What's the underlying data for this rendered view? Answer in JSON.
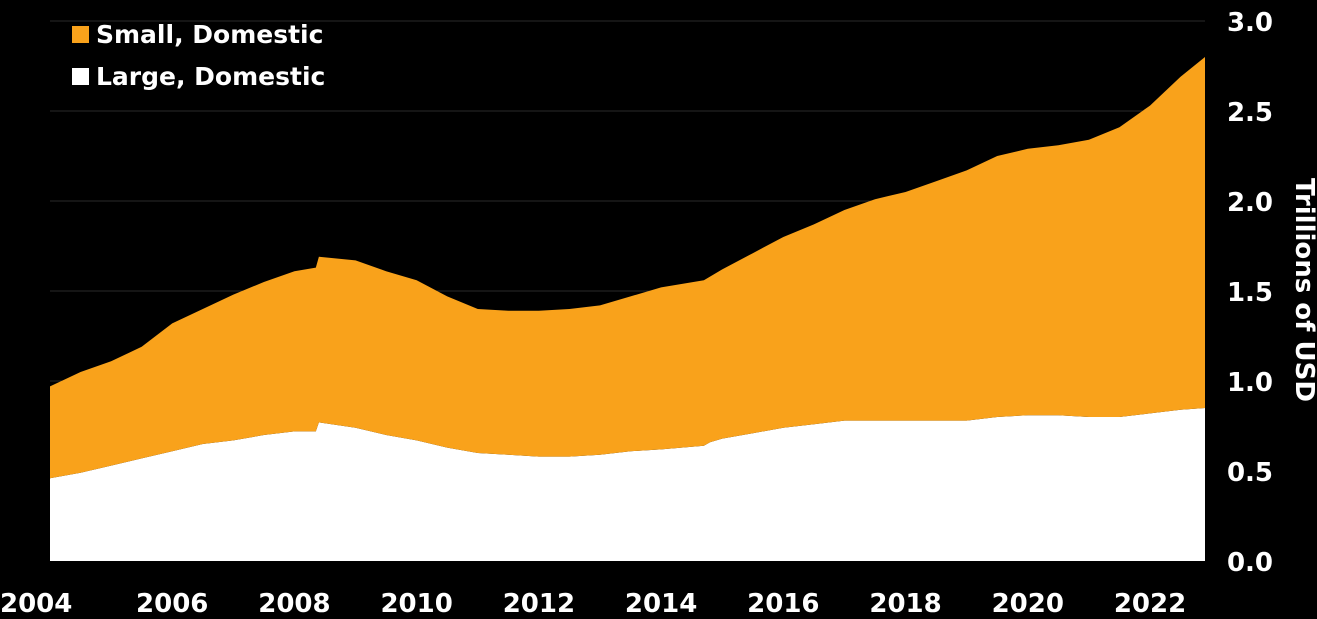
{
  "chart_data": {
    "type": "area",
    "stacked": true,
    "title": "",
    "xlabel": "",
    "ylabel": "Trillions of USD",
    "xlim": [
      2004,
      2022.9
    ],
    "ylim": [
      0,
      3.0
    ],
    "x_ticks": [
      "2004",
      "2006",
      "2008",
      "2010",
      "2012",
      "2014",
      "2016",
      "2018",
      "2020",
      "2022"
    ],
    "y_ticks": [
      "0.0",
      "0.5",
      "1.0",
      "1.5",
      "2.0",
      "2.5",
      "3.0"
    ],
    "grid": true,
    "legend_position": "top-left",
    "x": [
      2004,
      2004.5,
      2005,
      2005.5,
      2006,
      2006.5,
      2007,
      2007.5,
      2008,
      2008.35,
      2008.4,
      2009,
      2009.5,
      2010,
      2010.5,
      2011,
      2011.5,
      2012,
      2012.5,
      2013,
      2013.5,
      2014,
      2014.7,
      2014.8,
      2015,
      2015.5,
      2016,
      2016.5,
      2017,
      2017.5,
      2018,
      2018.5,
      2019,
      2019.5,
      2020,
      2020.5,
      2021,
      2021.5,
      2022,
      2022.5,
      2022.9
    ],
    "series": [
      {
        "name": "Large, Domestic",
        "color": "#ffffff",
        "values": [
          0.46,
          0.49,
          0.53,
          0.57,
          0.61,
          0.65,
          0.67,
          0.7,
          0.72,
          0.72,
          0.77,
          0.74,
          0.7,
          0.67,
          0.63,
          0.6,
          0.59,
          0.58,
          0.58,
          0.59,
          0.61,
          0.62,
          0.64,
          0.66,
          0.68,
          0.71,
          0.74,
          0.76,
          0.78,
          0.78,
          0.78,
          0.78,
          0.78,
          0.8,
          0.81,
          0.81,
          0.8,
          0.8,
          0.82,
          0.84,
          0.85
        ]
      },
      {
        "name": "Small, Domestic",
        "color": "#f9a21b",
        "values": [
          0.51,
          0.56,
          0.58,
          0.62,
          0.71,
          0.75,
          0.81,
          0.85,
          0.89,
          0.91,
          0.92,
          0.93,
          0.91,
          0.89,
          0.84,
          0.8,
          0.8,
          0.81,
          0.82,
          0.83,
          0.86,
          0.9,
          0.92,
          0.92,
          0.94,
          1.0,
          1.06,
          1.11,
          1.17,
          1.23,
          1.27,
          1.33,
          1.39,
          1.45,
          1.48,
          1.5,
          1.54,
          1.61,
          1.71,
          1.85,
          1.95
        ]
      }
    ]
  }
}
